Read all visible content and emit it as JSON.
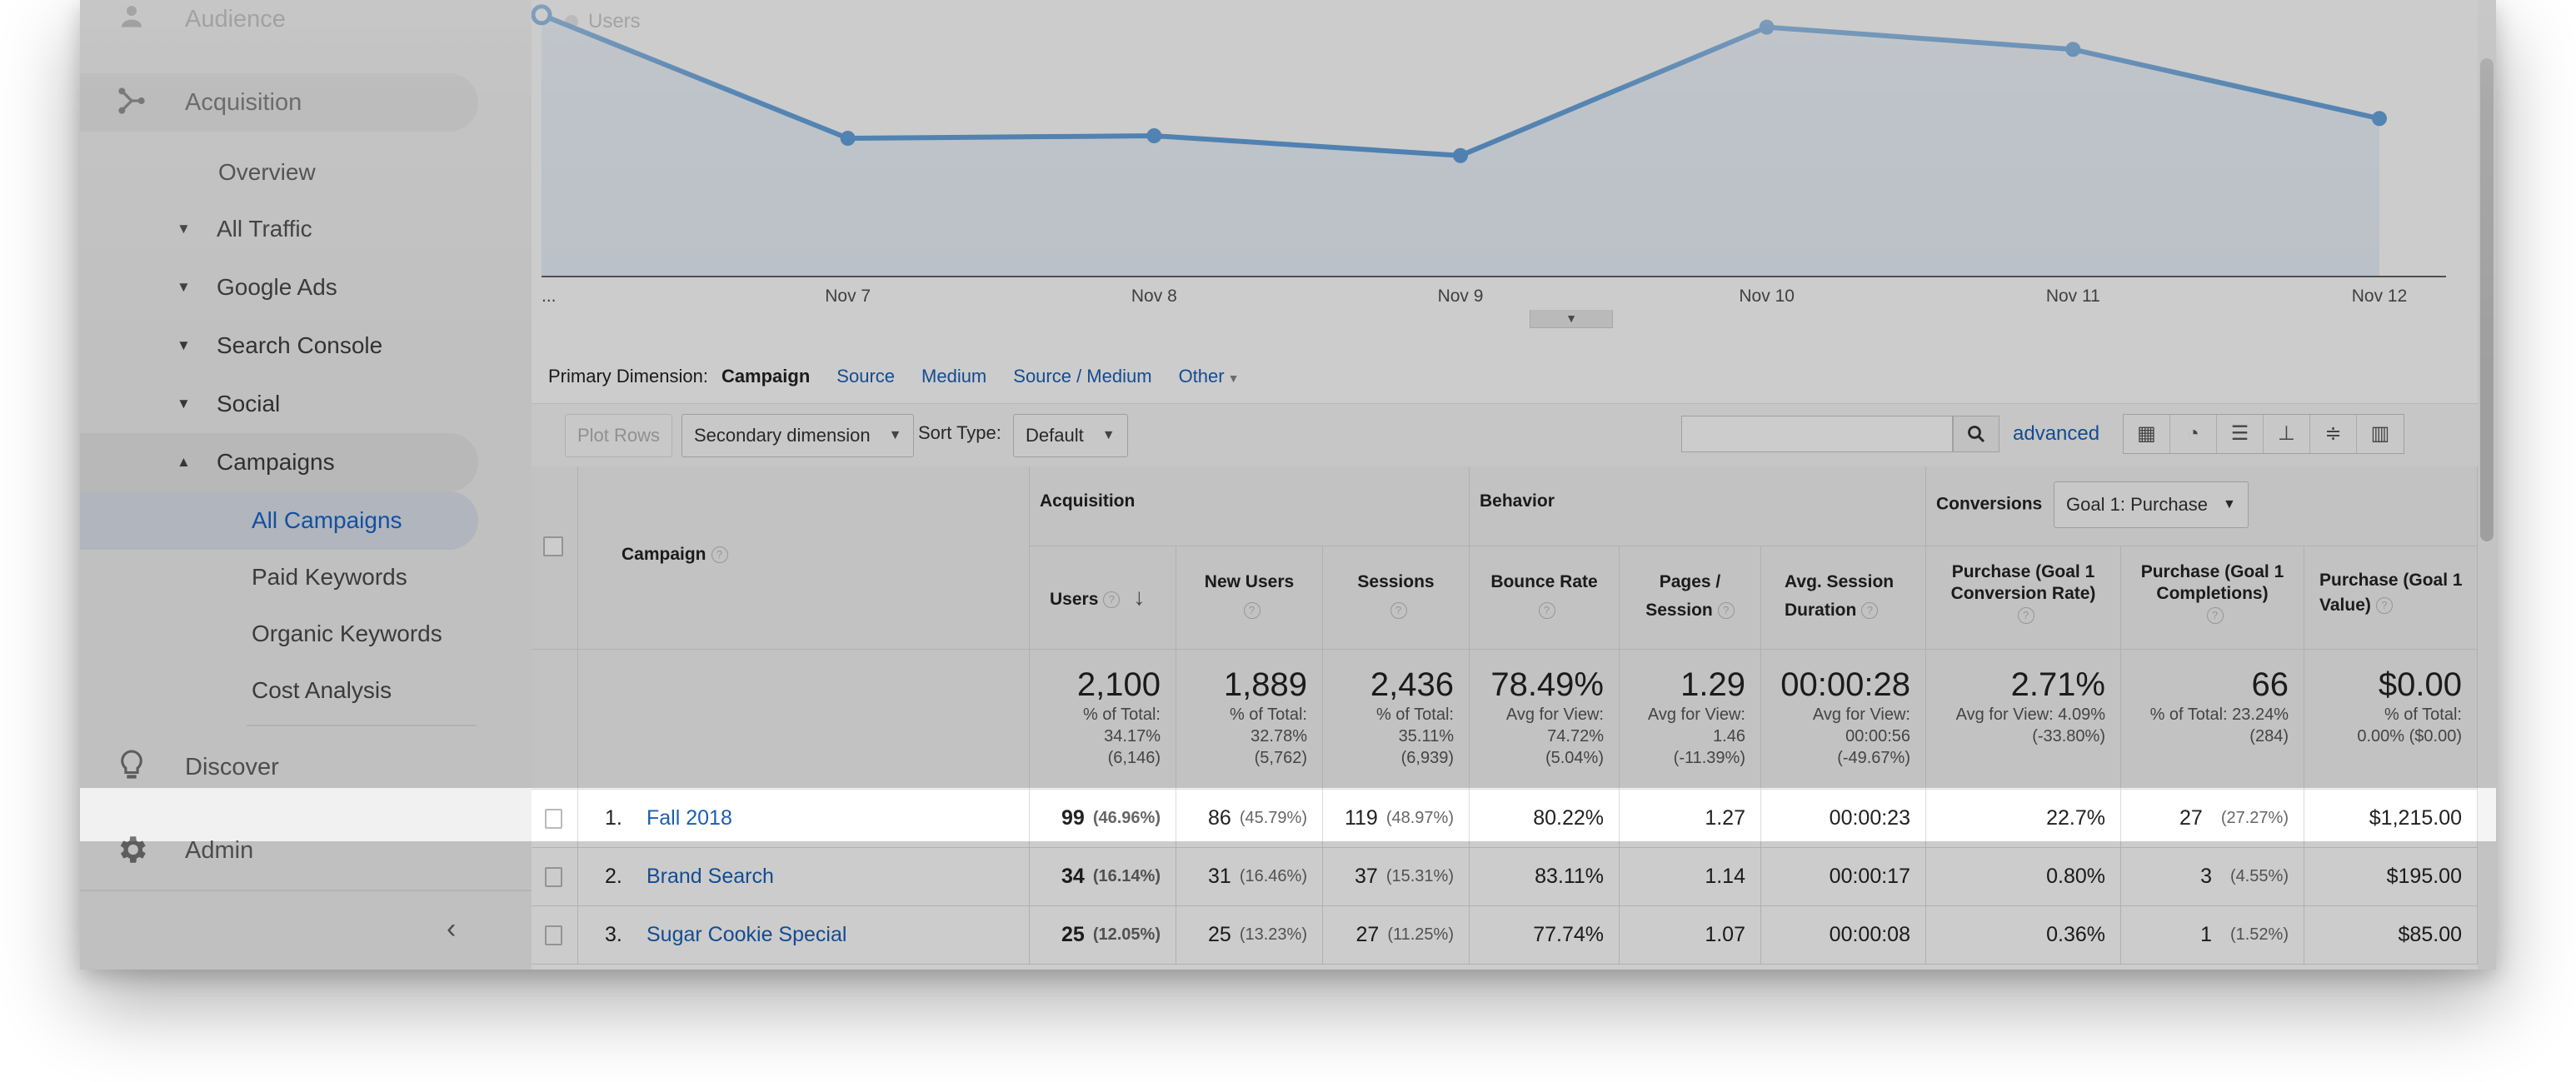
{
  "sidebar": {
    "audience": "Audience",
    "acquisition": "Acquisition",
    "overview": "Overview",
    "groups": [
      "All Traffic",
      "Google Ads",
      "Search Console",
      "Social"
    ],
    "campaigns": "Campaigns",
    "campaign_items": [
      "All Campaigns",
      "Paid Keywords",
      "Organic Keywords",
      "Cost Analysis"
    ],
    "discover": "Discover",
    "admin": "Admin"
  },
  "chart": {
    "legend": "Users",
    "x_labels": [
      "...",
      "Nov 7",
      "Nov 8",
      "Nov 9",
      "Nov 10",
      "Nov 11",
      "Nov 12"
    ]
  },
  "chart_data": {
    "type": "area",
    "x": [
      "...",
      "Nov 7",
      "Nov 8",
      "Nov 9",
      "Nov 10",
      "Nov 11",
      "Nov 12"
    ],
    "series": [
      {
        "name": "Users",
        "values": [
          530,
          280,
          285,
          245,
          505,
          460,
          320
        ]
      }
    ],
    "ylim": [
      0,
      560
    ],
    "grid": false,
    "colors": {
      "line": "#3d8bd6",
      "fill": "#e8f1fb"
    }
  },
  "dimension_bar": {
    "label": "Primary Dimension:",
    "current": "Campaign",
    "options": [
      "Source",
      "Medium",
      "Source / Medium",
      "Other"
    ]
  },
  "toolbar": {
    "plot_rows": "Plot Rows",
    "secondary_dimension": "Secondary dimension",
    "sort_type_label": "Sort Type:",
    "sort_type_value": "Default",
    "advanced": "advanced"
  },
  "table": {
    "dimension_header": "Campaign",
    "groups": {
      "acquisition": "Acquisition",
      "behavior": "Behavior",
      "conversions": "Conversions"
    },
    "goal_select": "Goal 1: Purchase",
    "columns": [
      "Users",
      "New Users",
      "Sessions",
      "Bounce Rate",
      "Pages / Session",
      "Avg. Session Duration",
      "Purchase (Goal 1 Conversion Rate)",
      "Purchase (Goal 1 Completions)",
      "Purchase (Goal 1 Value)"
    ],
    "totals": [
      {
        "big": "2,100",
        "sub": [
          "% of Total:",
          "34.17%",
          "(6,146)"
        ]
      },
      {
        "big": "1,889",
        "sub": [
          "% of Total:",
          "32.78%",
          "(5,762)"
        ]
      },
      {
        "big": "2,436",
        "sub": [
          "% of Total:",
          "35.11%",
          "(6,939)"
        ]
      },
      {
        "big": "78.49%",
        "sub": [
          "Avg for View:",
          "74.72%",
          "(5.04%)"
        ]
      },
      {
        "big": "1.29",
        "sub": [
          "Avg for View:",
          "1.46",
          "(-11.39%)"
        ]
      },
      {
        "big": "00:00:28",
        "sub": [
          "Avg for View:",
          "00:00:56",
          "(-49.67%)"
        ]
      },
      {
        "big": "2.71%",
        "sub": [
          "Avg for View: 4.09%",
          "(-33.80%)"
        ]
      },
      {
        "big": "66",
        "sub": [
          "% of Total: 23.24%",
          "(284)"
        ]
      },
      {
        "big": "$0.00",
        "sub": [
          "% of Total:",
          "0.00% ($0.00)"
        ]
      }
    ],
    "rows": [
      {
        "idx": "1.",
        "campaign": "Fall 2018",
        "users": "99",
        "users_pct": "(46.96%)",
        "new_users": "86",
        "new_users_pct": "(45.79%)",
        "sessions": "119",
        "sessions_pct": "(48.97%)",
        "bounce": "80.22%",
        "pages": "1.27",
        "duration": "00:00:23",
        "conv_rate": "22.7%",
        "completions": "27",
        "completions_pct": "(27.27%)",
        "value": "$1,215.00"
      },
      {
        "idx": "2.",
        "campaign": "Brand Search",
        "users": "34",
        "users_pct": "(16.14%)",
        "new_users": "31",
        "new_users_pct": "(16.46%)",
        "sessions": "37",
        "sessions_pct": "(15.31%)",
        "bounce": "83.11%",
        "pages": "1.14",
        "duration": "00:00:17",
        "conv_rate": "0.80%",
        "completions": "3",
        "completions_pct": "(4.55%)",
        "value": "$195.00"
      },
      {
        "idx": "3.",
        "campaign": "Sugar Cookie Special",
        "users": "25",
        "users_pct": "(12.05%)",
        "new_users": "25",
        "new_users_pct": "(13.23%)",
        "sessions": "27",
        "sessions_pct": "(11.25%)",
        "bounce": "77.74%",
        "pages": "1.07",
        "duration": "00:00:08",
        "conv_rate": "0.36%",
        "completions": "1",
        "completions_pct": "(1.52%)",
        "value": "$85.00"
      }
    ]
  }
}
